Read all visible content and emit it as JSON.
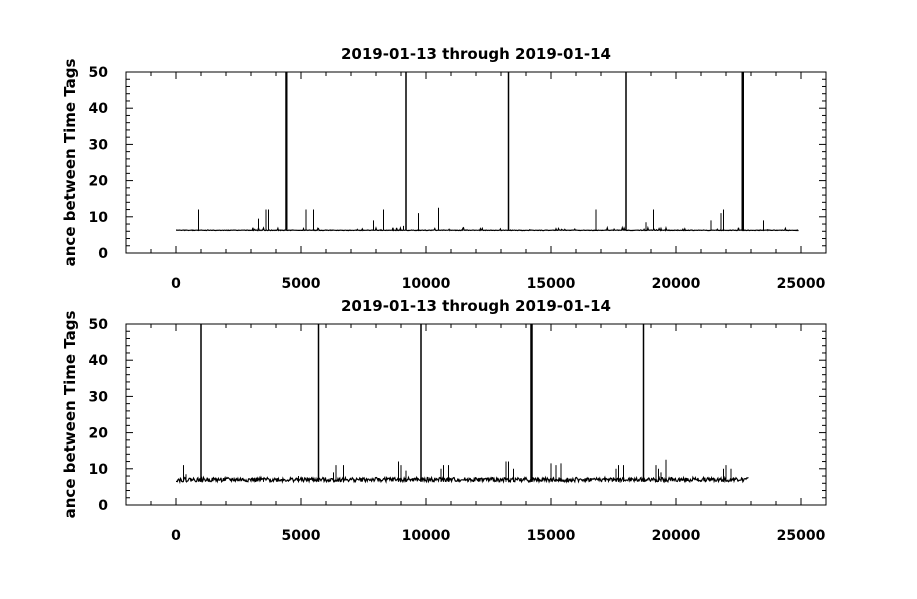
{
  "chart_data": [
    {
      "type": "line",
      "title": "2019-01-13 through 2019-01-14",
      "xlabel": "",
      "ylabel": "ance between Time Tags",
      "xlim": [
        -2000,
        26000
      ],
      "ylim": [
        0,
        50
      ],
      "xticks": [
        0,
        5000,
        10000,
        15000,
        20000,
        25000
      ],
      "yticks": [
        0,
        10,
        20,
        30,
        40,
        50
      ],
      "grid": false,
      "data_range": [
        0,
        24900
      ],
      "baseline": 6.2,
      "series": [
        {
          "spikes": [
            {
              "x": 900,
              "y": 12
            },
            {
              "x": 3300,
              "y": 9.5
            },
            {
              "x": 3600,
              "y": 12
            },
            {
              "x": 3700,
              "y": 12
            },
            {
              "x": 4400,
              "y": 50
            },
            {
              "x": 4430,
              "y": 50
            },
            {
              "x": 5200,
              "y": 12
            },
            {
              "x": 5500,
              "y": 12
            },
            {
              "x": 7900,
              "y": 9
            },
            {
              "x": 8300,
              "y": 12
            },
            {
              "x": 9100,
              "y": 7.5
            },
            {
              "x": 9200,
              "y": 50
            },
            {
              "x": 9700,
              "y": 11
            },
            {
              "x": 10500,
              "y": 12.5
            },
            {
              "x": 13300,
              "y": 50
            },
            {
              "x": 16800,
              "y": 12
            },
            {
              "x": 18000,
              "y": 50
            },
            {
              "x": 18800,
              "y": 8.5
            },
            {
              "x": 19100,
              "y": 12
            },
            {
              "x": 21400,
              "y": 9
            },
            {
              "x": 21800,
              "y": 11
            },
            {
              "x": 21900,
              "y": 12
            },
            {
              "x": 22650,
              "y": 50
            },
            {
              "x": 22690,
              "y": 50
            },
            {
              "x": 23500,
              "y": 9
            }
          ]
        }
      ]
    },
    {
      "type": "line",
      "title": "2019-01-13 through 2019-01-14",
      "xlabel": "",
      "ylabel": "ance between Time Tags",
      "xlim": [
        -2000,
        26000
      ],
      "ylim": [
        0,
        50
      ],
      "xticks": [
        0,
        5000,
        10000,
        15000,
        20000,
        25000
      ],
      "yticks": [
        0,
        10,
        20,
        30,
        40,
        50
      ],
      "grid": false,
      "data_range": [
        0,
        22900
      ],
      "baseline": 6.4,
      "series": [
        {
          "spikes": [
            {
              "x": 300,
              "y": 11
            },
            {
              "x": 400,
              "y": 8.5
            },
            {
              "x": 1000,
              "y": 50
            },
            {
              "x": 3500,
              "y": 7.5
            },
            {
              "x": 4900,
              "y": 8
            },
            {
              "x": 5700,
              "y": 50
            },
            {
              "x": 6300,
              "y": 9
            },
            {
              "x": 6400,
              "y": 11
            },
            {
              "x": 6700,
              "y": 11
            },
            {
              "x": 8900,
              "y": 12
            },
            {
              "x": 9000,
              "y": 11
            },
            {
              "x": 9200,
              "y": 9.5
            },
            {
              "x": 9800,
              "y": 50
            },
            {
              "x": 10600,
              "y": 10
            },
            {
              "x": 10700,
              "y": 11
            },
            {
              "x": 10900,
              "y": 11
            },
            {
              "x": 13200,
              "y": 12
            },
            {
              "x": 13300,
              "y": 12
            },
            {
              "x": 13500,
              "y": 10
            },
            {
              "x": 14200,
              "y": 50
            },
            {
              "x": 14240,
              "y": 50
            },
            {
              "x": 15000,
              "y": 11.5
            },
            {
              "x": 15200,
              "y": 11
            },
            {
              "x": 15400,
              "y": 11.5
            },
            {
              "x": 17600,
              "y": 10
            },
            {
              "x": 17700,
              "y": 11
            },
            {
              "x": 17900,
              "y": 11
            },
            {
              "x": 18700,
              "y": 50
            },
            {
              "x": 19200,
              "y": 11
            },
            {
              "x": 19300,
              "y": 10
            },
            {
              "x": 19400,
              "y": 9
            },
            {
              "x": 19600,
              "y": 12.5
            },
            {
              "x": 21900,
              "y": 10
            },
            {
              "x": 22000,
              "y": 11
            },
            {
              "x": 22200,
              "y": 10
            }
          ]
        }
      ]
    }
  ]
}
